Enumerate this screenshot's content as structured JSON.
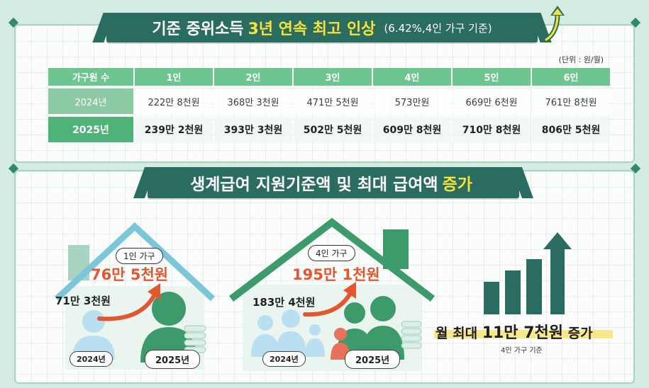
{
  "top": {
    "title_prefix": "기준 중위소득",
    "title_highlight": "3년 연속 최고 인상",
    "title_suffix": "(6.42%,4인 가구 기준)",
    "unit": "(단위 : 원/월)",
    "table": {
      "header": [
        "가구원 수",
        "1인",
        "2인",
        "3인",
        "4인",
        "5인",
        "6인"
      ],
      "rows": [
        {
          "year": "2024년",
          "values": [
            "222만 8천원",
            "368만 3천원",
            "471만 5천원",
            "573만원",
            "669만 6천원",
            "761만 8천원"
          ]
        },
        {
          "year": "2025년",
          "values": [
            "239만 2천원",
            "393만 3천원",
            "502만 5천원",
            "609만 8천원",
            "710만 8천원",
            "806만 5천원"
          ]
        }
      ]
    }
  },
  "bottom": {
    "title_prefix": "생계급여 지원기준액 및 최대 급여액",
    "title_highlight": "증가",
    "house1": {
      "label": "1인 가구",
      "new_amount": "76만 5천원",
      "old_amount": "71만 3천원",
      "old_year": "2024년",
      "new_year": "2025년"
    },
    "house4": {
      "label": "4인 가구",
      "new_amount": "195만 1천원",
      "old_amount": "183만 4천원",
      "old_year": "2024년",
      "new_year": "2025년"
    },
    "summary": {
      "prefix": "월 최대",
      "amount": "11만 7천원",
      "suffix": "증가",
      "note": "4인 가구 기준"
    }
  },
  "colors": {
    "primary": "#2a6d60",
    "accent_yellow": "#f7e23a",
    "accent_red": "#e4572e",
    "green": "#4fb279"
  },
  "icons": [
    "up-arrow-icon",
    "bar-growth-icon",
    "person-icon",
    "coin-stack-icon",
    "curved-arrow-icon"
  ]
}
